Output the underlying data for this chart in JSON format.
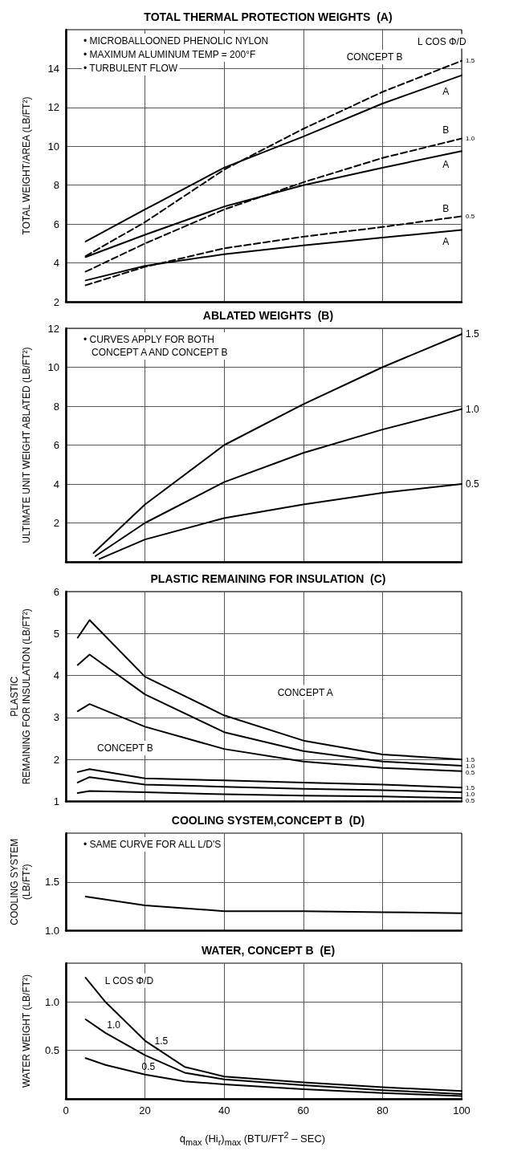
{
  "chart_data": [
    {
      "type": "line",
      "title": "TOTAL THERMAL PROTECTION WEIGHTS  (A)",
      "ylabel": "TOTAL WEIGHT/AREA (LB/FT²)",
      "xlim": [
        0,
        100
      ],
      "xticks": [
        0,
        20,
        40,
        60,
        80,
        100
      ],
      "ylim": [
        2,
        16
      ],
      "yticks": [
        2,
        4,
        6,
        8,
        10,
        12,
        14
      ],
      "tick_labels": "y",
      "grid": true,
      "legend": false,
      "marker": "none",
      "x": [
        5,
        20,
        40,
        60,
        80,
        100
      ],
      "series": [
        {
          "color": "#000000",
          "line_style": "solid",
          "values": [
            5.1,
            6.75,
            8.9,
            10.5,
            12.2,
            13.65
          ]
        },
        {
          "name": "1.5",
          "color": "#000000",
          "line_style": "dashed",
          "values": [
            4.35,
            6.1,
            8.8,
            10.9,
            12.8,
            14.4
          ]
        },
        {
          "color": "#000000",
          "line_style": "solid",
          "values": [
            4.3,
            5.45,
            6.9,
            8.0,
            8.9,
            9.75
          ]
        },
        {
          "name": "1.0",
          "color": "#000000",
          "line_style": "dashed",
          "values": [
            3.55,
            5.0,
            6.75,
            8.15,
            9.4,
            10.4
          ]
        },
        {
          "color": "#000000",
          "line_style": "solid",
          "values": [
            3.1,
            3.85,
            4.45,
            4.9,
            5.3,
            5.7
          ]
        },
        {
          "name": "0.5",
          "color": "#000000",
          "line_style": "dashed",
          "values": [
            2.85,
            3.8,
            4.75,
            5.35,
            5.85,
            6.4
          ]
        }
      ],
      "annotations": [
        "• MICROBALLOONED PHENOLIC NYLON",
        "• MAXIMUM ALUMINUM TEMP = 200°F",
        "• TURBULENT FLOW",
        "L COS Φ/D",
        "CONCEPT B",
        "A",
        "B",
        "A",
        "B",
        "A"
      ]
    },
    {
      "type": "line",
      "title": "ABLATED WEIGHTS  (B)",
      "ylabel": "ULTIMATE UNIT WEIGHT ABLATED (LB/FT²)",
      "xlim": [
        0,
        100
      ],
      "xticks": [
        0,
        20,
        40,
        60,
        80,
        100
      ],
      "ylim": [
        0,
        12
      ],
      "yticks": [
        2,
        4,
        6,
        8,
        10,
        12
      ],
      "tick_labels": "y",
      "grid": true,
      "legend": false,
      "marker": "none",
      "series": [
        {
          "name": "1.5",
          "color": "#000000",
          "x": [
            7,
            20,
            40,
            60,
            80,
            100
          ],
          "values": [
            0.45,
            2.95,
            6.0,
            8.1,
            10.0,
            11.7
          ]
        },
        {
          "name": "1.0",
          "color": "#000000",
          "x": [
            7.5,
            20,
            40,
            60,
            80,
            100
          ],
          "values": [
            0.3,
            2.0,
            4.1,
            5.6,
            6.8,
            7.85
          ]
        },
        {
          "name": "0.5",
          "color": "#000000",
          "x": [
            8.5,
            20,
            40,
            60,
            80,
            100
          ],
          "values": [
            0.15,
            1.15,
            2.25,
            2.95,
            3.55,
            4.0
          ]
        }
      ],
      "annotations": [
        "• CURVES APPLY FOR BOTH\n   CONCEPT A AND CONCEPT B"
      ]
    },
    {
      "type": "line",
      "title": "PLASTIC REMAINING FOR INSULATION  (C)",
      "ylabel": "PLASTIC\nREMAINING FOR INSULATION (LB/FT²)",
      "xlim": [
        0,
        100
      ],
      "xticks": [
        0,
        20,
        40,
        60,
        80,
        100
      ],
      "ylim": [
        1,
        6
      ],
      "yticks": [
        1,
        2,
        3,
        4,
        5,
        6
      ],
      "tick_labels": "y",
      "grid": true,
      "legend": false,
      "marker": "none",
      "x": [
        3,
        6,
        20,
        40,
        60,
        80,
        100
      ],
      "series": [
        {
          "name": "1.5",
          "color": "#000000",
          "values": [
            4.9,
            5.32,
            3.97,
            3.05,
            2.45,
            2.12,
            2.0
          ]
        },
        {
          "name": "1.0",
          "color": "#000000",
          "values": [
            4.25,
            4.5,
            3.55,
            2.65,
            2.2,
            1.95,
            1.85
          ]
        },
        {
          "name": "0.5",
          "color": "#000000",
          "values": [
            3.15,
            3.32,
            2.78,
            2.25,
            1.95,
            1.8,
            1.72
          ]
        },
        {
          "name": "1.5",
          "color": "#000000",
          "values": [
            1.7,
            1.77,
            1.55,
            1.5,
            1.45,
            1.4,
            1.33
          ]
        },
        {
          "name": "1.0",
          "color": "#000000",
          "values": [
            1.45,
            1.58,
            1.4,
            1.35,
            1.3,
            1.27,
            1.22
          ]
        },
        {
          "name": "0.5",
          "color": "#000000",
          "values": [
            1.2,
            1.25,
            1.22,
            1.17,
            1.14,
            1.12,
            1.08
          ]
        }
      ],
      "annotations": [
        "CONCEPT A",
        "CONCEPT B"
      ]
    },
    {
      "type": "line",
      "title": "COOLING SYSTEM,CONCEPT B  (D)",
      "ylabel": "COOLING SYSTEM\n(LB/FT²)",
      "xlim": [
        0,
        100
      ],
      "xticks": [
        0,
        20,
        40,
        60,
        80,
        100
      ],
      "ylim": [
        1,
        2
      ],
      "yticks": [
        {
          "value": 1,
          "label": "1.0"
        },
        1.5
      ],
      "tick_labels": "y",
      "grid": true,
      "legend": false,
      "marker": "none",
      "x": [
        5,
        20,
        40,
        60,
        80,
        100
      ],
      "series": [
        {
          "color": "#000000",
          "values": [
            1.35,
            1.26,
            1.2,
            1.2,
            1.19,
            1.18
          ]
        }
      ],
      "annotations": [
        "• SAME CURVE FOR ALL L/D'S"
      ]
    },
    {
      "type": "line",
      "title": "WATER, CONCEPT B  (E)",
      "xlabel": "q̇$_{max}$  (Hi$_{r}$)$_{max}$  (BTU/FT$^{2}$ – SEC)",
      "ylabel": "WATER WEIGHT (LB/FT²)",
      "xlim": [
        0,
        100
      ],
      "xticks": [
        0,
        20,
        40,
        60,
        80,
        100
      ],
      "ylim": [
        0,
        1.4
      ],
      "yticks": [
        0.5,
        {
          "value": 1,
          "label": "1.0"
        }
      ],
      "grid": true,
      "legend": false,
      "marker": "none",
      "x": [
        5,
        10,
        20,
        30,
        40,
        60,
        80,
        100
      ],
      "series": [
        {
          "name": "1.5",
          "color": "#000000",
          "values": [
            1.25,
            1.0,
            0.6,
            0.33,
            0.23,
            0.17,
            0.12,
            0.08
          ]
        },
        {
          "name": "1.0",
          "color": "#000000",
          "values": [
            0.82,
            0.68,
            0.45,
            0.27,
            0.2,
            0.14,
            0.09,
            0.05
          ]
        },
        {
          "name": "0.5",
          "color": "#000000",
          "values": [
            0.42,
            0.35,
            0.25,
            0.18,
            0.15,
            0.1,
            0.06,
            0.03
          ]
        }
      ],
      "annotations": [
        "L COS Φ/D"
      ]
    }
  ]
}
